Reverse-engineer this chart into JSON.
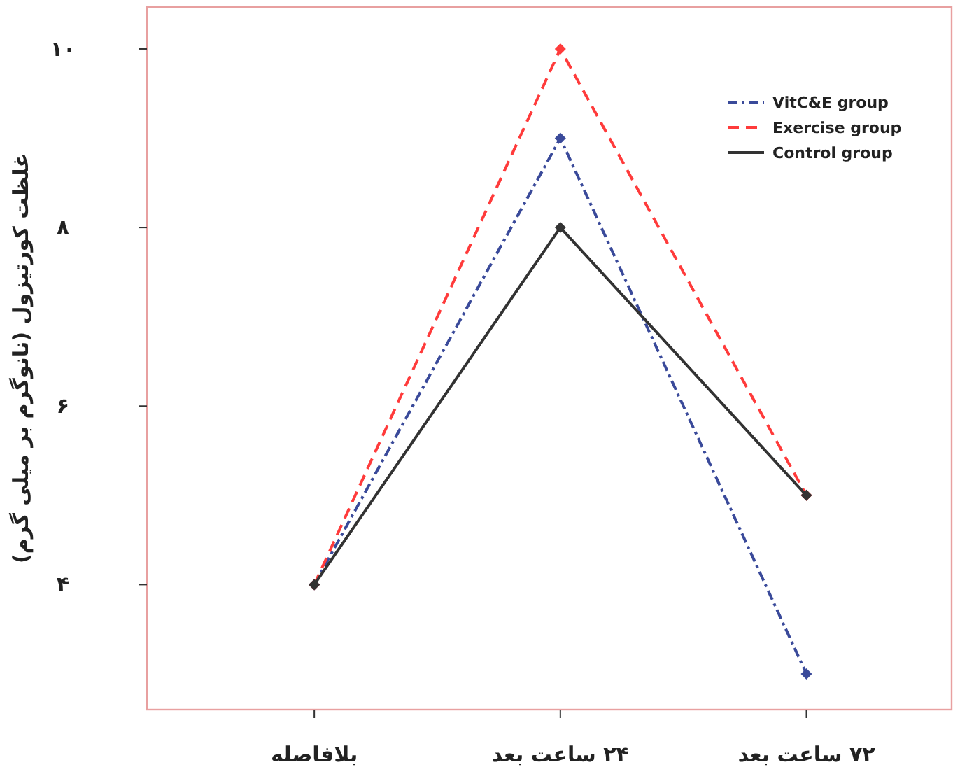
{
  "chart_data": {
    "type": "line",
    "ylabel": "غلظت کورتیزول (نانوگرم بر میلی گرم)",
    "categories": [
      "بلافاصله",
      "۲۴ ساعت بعد",
      "۷۲ ساعت بعد"
    ],
    "series": [
      {
        "name": "VitC&E group",
        "color": "#3a4a9a",
        "line_style": "dashdot",
        "values": [
          4.0,
          9.0,
          3.0
        ]
      },
      {
        "name": "Exercise group",
        "color": "#ff3b3b",
        "line_style": "dashed",
        "values": [
          4.0,
          10.0,
          5.0
        ]
      },
      {
        "name": "Control group",
        "color": "#333333",
        "line_style": "solid",
        "values": [
          4.0,
          8.0,
          5.0
        ]
      }
    ],
    "ylim": [
      2.6,
      10.47
    ],
    "yticks": [
      {
        "value": 4,
        "label": "۴"
      },
      {
        "value": 6,
        "label": "۶"
      },
      {
        "value": 8,
        "label": "۸"
      },
      {
        "value": 10,
        "label": "۱۰"
      }
    ],
    "marker": "diamond",
    "legend": "top right",
    "grid": false
  }
}
